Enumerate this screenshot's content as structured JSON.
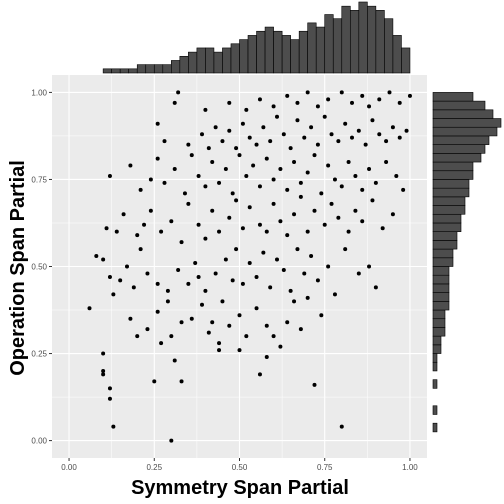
{
  "chart_data": {
    "type": "scatter",
    "xlabel": "Symmetry Span Partial",
    "ylabel": "Operation Span Partial",
    "xlim": [
      -0.05,
      1.05
    ],
    "ylim": [
      -0.05,
      1.05
    ],
    "x_ticks": [
      0.0,
      0.25,
      0.5,
      0.75,
      1.0
    ],
    "x_tick_labels": [
      "0.00",
      "0.25",
      "0.50",
      "0.75",
      "1.00"
    ],
    "y_ticks": [
      0.0,
      0.25,
      0.5,
      0.75,
      1.0
    ],
    "y_tick_labels": [
      "0.00",
      "0.25",
      "0.50",
      "0.75",
      "1.00"
    ],
    "grid": true,
    "panel_background": "#ebebeb",
    "point_color": "#000000",
    "bar_color": "#4d4d4d",
    "marginal_x_histogram": {
      "bin_width": 0.025,
      "bin_starts": [
        0.0,
        0.025,
        0.05,
        0.075,
        0.1,
        0.125,
        0.15,
        0.175,
        0.2,
        0.225,
        0.25,
        0.275,
        0.3,
        0.325,
        0.35,
        0.375,
        0.4,
        0.425,
        0.45,
        0.475,
        0.5,
        0.525,
        0.55,
        0.575,
        0.6,
        0.625,
        0.65,
        0.675,
        0.7,
        0.725,
        0.75,
        0.775,
        0.8,
        0.825,
        0.85,
        0.875,
        0.9,
        0.925,
        0.95,
        0.975
      ],
      "counts": [
        0,
        0,
        0,
        0,
        1,
        1,
        1,
        1,
        2,
        2,
        2,
        2,
        3,
        4,
        5,
        6,
        6,
        5,
        6,
        7,
        8,
        9,
        10,
        11,
        10,
        9,
        8,
        10,
        12,
        11,
        14,
        13,
        16,
        15,
        17,
        16,
        15,
        13,
        9,
        6
      ]
    },
    "marginal_y_histogram": {
      "bin_width": 0.025,
      "bin_starts": [
        0.0,
        0.025,
        0.05,
        0.075,
        0.1,
        0.125,
        0.15,
        0.175,
        0.2,
        0.225,
        0.25,
        0.275,
        0.3,
        0.325,
        0.35,
        0.375,
        0.4,
        0.425,
        0.45,
        0.475,
        0.5,
        0.525,
        0.55,
        0.575,
        0.6,
        0.625,
        0.65,
        0.675,
        0.7,
        0.725,
        0.75,
        0.775,
        0.8,
        0.825,
        0.85,
        0.875,
        0.9,
        0.925,
        0.95,
        0.975
      ],
      "counts": [
        0,
        1,
        0,
        1,
        0,
        0,
        1,
        0,
        1,
        1,
        2,
        2,
        3,
        3,
        3,
        4,
        4,
        4,
        4,
        4,
        5,
        5,
        6,
        6,
        7,
        7,
        8,
        8,
        9,
        9,
        10,
        10,
        12,
        13,
        14,
        16,
        17,
        15,
        13,
        10
      ]
    },
    "points": [
      [
        0.3,
        0.0
      ],
      [
        0.13,
        0.04
      ],
      [
        0.8,
        0.04
      ],
      [
        0.12,
        0.12
      ],
      [
        0.12,
        0.15
      ],
      [
        0.1,
        0.19
      ],
      [
        0.1,
        0.2
      ],
      [
        0.25,
        0.17
      ],
      [
        0.33,
        0.17
      ],
      [
        0.56,
        0.19
      ],
      [
        0.72,
        0.16
      ],
      [
        0.31,
        0.23
      ],
      [
        0.1,
        0.25
      ],
      [
        0.27,
        0.28
      ],
      [
        0.2,
        0.3
      ],
      [
        0.3,
        0.3
      ],
      [
        0.44,
        0.26
      ],
      [
        0.5,
        0.26
      ],
      [
        0.58,
        0.24
      ],
      [
        0.62,
        0.27
      ],
      [
        0.06,
        0.38
      ],
      [
        0.13,
        0.42
      ],
      [
        0.18,
        0.35
      ],
      [
        0.23,
        0.32
      ],
      [
        0.26,
        0.37
      ],
      [
        0.29,
        0.4
      ],
      [
        0.33,
        0.34
      ],
      [
        0.36,
        0.35
      ],
      [
        0.39,
        0.39
      ],
      [
        0.41,
        0.31
      ],
      [
        0.42,
        0.34
      ],
      [
        0.44,
        0.28
      ],
      [
        0.45,
        0.4
      ],
      [
        0.47,
        0.33
      ],
      [
        0.5,
        0.36
      ],
      [
        0.52,
        0.3
      ],
      [
        0.55,
        0.38
      ],
      [
        0.58,
        0.33
      ],
      [
        0.6,
        0.3
      ],
      [
        0.64,
        0.34
      ],
      [
        0.66,
        0.4
      ],
      [
        0.68,
        0.32
      ],
      [
        0.7,
        0.41
      ],
      [
        0.74,
        0.36
      ],
      [
        0.08,
        0.53
      ],
      [
        0.1,
        0.52
      ],
      [
        0.12,
        0.47
      ],
      [
        0.15,
        0.46
      ],
      [
        0.17,
        0.5
      ],
      [
        0.19,
        0.44
      ],
      [
        0.21,
        0.55
      ],
      [
        0.23,
        0.48
      ],
      [
        0.26,
        0.45
      ],
      [
        0.29,
        0.43
      ],
      [
        0.32,
        0.49
      ],
      [
        0.35,
        0.45
      ],
      [
        0.37,
        0.51
      ],
      [
        0.38,
        0.47
      ],
      [
        0.4,
        0.43
      ],
      [
        0.43,
        0.48
      ],
      [
        0.46,
        0.52
      ],
      [
        0.48,
        0.46
      ],
      [
        0.49,
        0.55
      ],
      [
        0.51,
        0.45
      ],
      [
        0.53,
        0.51
      ],
      [
        0.55,
        0.47
      ],
      [
        0.57,
        0.54
      ],
      [
        0.59,
        0.44
      ],
      [
        0.61,
        0.52
      ],
      [
        0.63,
        0.49
      ],
      [
        0.65,
        0.43
      ],
      [
        0.67,
        0.55
      ],
      [
        0.69,
        0.48
      ],
      [
        0.71,
        0.53
      ],
      [
        0.73,
        0.46
      ],
      [
        0.76,
        0.5
      ],
      [
        0.78,
        0.42
      ],
      [
        0.81,
        0.55
      ],
      [
        0.85,
        0.48
      ],
      [
        0.88,
        0.5
      ],
      [
        0.9,
        0.44
      ],
      [
        0.11,
        0.61
      ],
      [
        0.14,
        0.6
      ],
      [
        0.16,
        0.65
      ],
      [
        0.2,
        0.59
      ],
      [
        0.22,
        0.62
      ],
      [
        0.24,
        0.66
      ],
      [
        0.27,
        0.6
      ],
      [
        0.3,
        0.63
      ],
      [
        0.33,
        0.57
      ],
      [
        0.35,
        0.68
      ],
      [
        0.38,
        0.62
      ],
      [
        0.4,
        0.58
      ],
      [
        0.42,
        0.66
      ],
      [
        0.44,
        0.6
      ],
      [
        0.47,
        0.64
      ],
      [
        0.49,
        0.69
      ],
      [
        0.51,
        0.61
      ],
      [
        0.53,
        0.67
      ],
      [
        0.56,
        0.62
      ],
      [
        0.58,
        0.6
      ],
      [
        0.6,
        0.68
      ],
      [
        0.62,
        0.63
      ],
      [
        0.64,
        0.59
      ],
      [
        0.66,
        0.65
      ],
      [
        0.68,
        0.7
      ],
      [
        0.7,
        0.6
      ],
      [
        0.72,
        0.66
      ],
      [
        0.75,
        0.62
      ],
      [
        0.77,
        0.68
      ],
      [
        0.79,
        0.64
      ],
      [
        0.82,
        0.6
      ],
      [
        0.84,
        0.66
      ],
      [
        0.86,
        0.63
      ],
      [
        0.89,
        0.69
      ],
      [
        0.92,
        0.61
      ],
      [
        0.95,
        0.65
      ],
      [
        0.12,
        0.76
      ],
      [
        0.18,
        0.79
      ],
      [
        0.21,
        0.72
      ],
      [
        0.24,
        0.75
      ],
      [
        0.26,
        0.81
      ],
      [
        0.28,
        0.74
      ],
      [
        0.31,
        0.78
      ],
      [
        0.34,
        0.71
      ],
      [
        0.36,
        0.82
      ],
      [
        0.38,
        0.76
      ],
      [
        0.4,
        0.73
      ],
      [
        0.42,
        0.8
      ],
      [
        0.44,
        0.74
      ],
      [
        0.46,
        0.78
      ],
      [
        0.48,
        0.71
      ],
      [
        0.5,
        0.82
      ],
      [
        0.52,
        0.76
      ],
      [
        0.54,
        0.79
      ],
      [
        0.56,
        0.73
      ],
      [
        0.58,
        0.81
      ],
      [
        0.6,
        0.75
      ],
      [
        0.62,
        0.78
      ],
      [
        0.64,
        0.72
      ],
      [
        0.66,
        0.8
      ],
      [
        0.68,
        0.74
      ],
      [
        0.7,
        0.77
      ],
      [
        0.72,
        0.82
      ],
      [
        0.74,
        0.71
      ],
      [
        0.76,
        0.79
      ],
      [
        0.78,
        0.75
      ],
      [
        0.8,
        0.73
      ],
      [
        0.82,
        0.8
      ],
      [
        0.84,
        0.76
      ],
      [
        0.86,
        0.72
      ],
      [
        0.88,
        0.78
      ],
      [
        0.9,
        0.74
      ],
      [
        0.93,
        0.8
      ],
      [
        0.96,
        0.76
      ],
      [
        0.98,
        0.72
      ],
      [
        0.28,
        0.86
      ],
      [
        0.35,
        0.85
      ],
      [
        0.39,
        0.88
      ],
      [
        0.41,
        0.84
      ],
      [
        0.43,
        0.9
      ],
      [
        0.45,
        0.86
      ],
      [
        0.47,
        0.89
      ],
      [
        0.49,
        0.84
      ],
      [
        0.51,
        0.91
      ],
      [
        0.53,
        0.87
      ],
      [
        0.55,
        0.85
      ],
      [
        0.57,
        0.9
      ],
      [
        0.59,
        0.86
      ],
      [
        0.61,
        0.93
      ],
      [
        0.63,
        0.88
      ],
      [
        0.65,
        0.84
      ],
      [
        0.67,
        0.92
      ],
      [
        0.69,
        0.87
      ],
      [
        0.71,
        0.9
      ],
      [
        0.73,
        0.85
      ],
      [
        0.75,
        0.93
      ],
      [
        0.77,
        0.88
      ],
      [
        0.79,
        0.86
      ],
      [
        0.81,
        0.91
      ],
      [
        0.83,
        0.87
      ],
      [
        0.85,
        0.89
      ],
      [
        0.87,
        0.85
      ],
      [
        0.89,
        0.92
      ],
      [
        0.91,
        0.88
      ],
      [
        0.93,
        0.86
      ],
      [
        0.95,
        0.9
      ],
      [
        0.97,
        0.87
      ],
      [
        0.99,
        0.89
      ],
      [
        0.26,
        0.91
      ],
      [
        0.31,
        0.97
      ],
      [
        0.32,
        1.0
      ],
      [
        0.4,
        0.95
      ],
      [
        0.47,
        0.97
      ],
      [
        0.52,
        0.95
      ],
      [
        0.56,
        0.98
      ],
      [
        0.6,
        0.96
      ],
      [
        0.64,
        0.99
      ],
      [
        0.67,
        0.97
      ],
      [
        0.7,
        1.0
      ],
      [
        0.73,
        0.96
      ],
      [
        0.76,
        0.98
      ],
      [
        0.8,
        1.0
      ],
      [
        0.83,
        0.97
      ],
      [
        0.86,
        0.99
      ],
      [
        0.88,
        0.96
      ],
      [
        0.91,
        0.98
      ],
      [
        0.94,
        1.0
      ],
      [
        0.97,
        0.97
      ],
      [
        1.0,
        0.99
      ]
    ]
  }
}
